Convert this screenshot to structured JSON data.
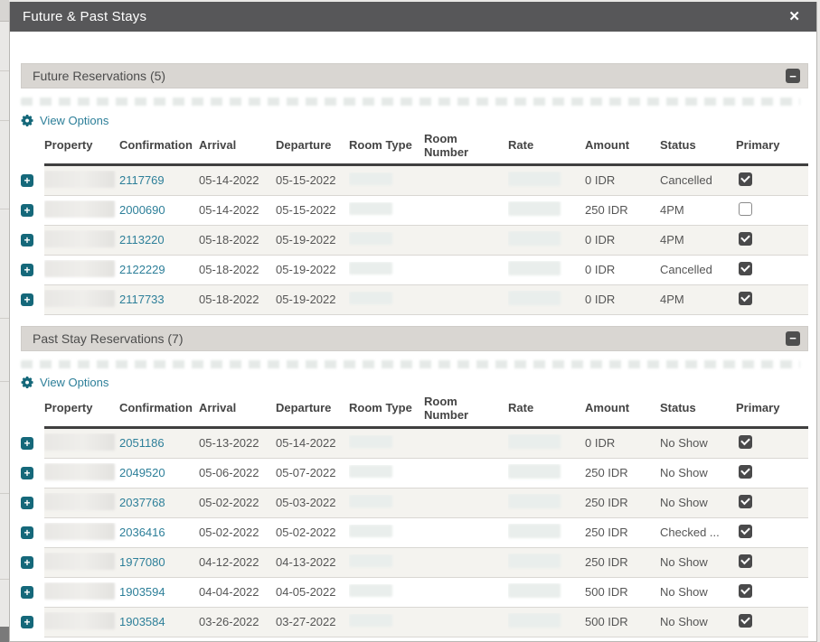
{
  "modal": {
    "title": "Future & Past Stays"
  },
  "icons": {
    "close": "✕",
    "collapse": "−",
    "expand": "+"
  },
  "view_options_label": "View Options",
  "columns": [
    "Property",
    "Confirmation",
    "Arrival",
    "Departure",
    "Room Type",
    "Room Number",
    "Rate",
    "Amount",
    "Status",
    "Primary"
  ],
  "redacted_columns": [
    "Property",
    "Room Type",
    "Room Number",
    "Rate"
  ],
  "colors": {
    "titlebar_bg": "#575759",
    "section_header_bg": "#d9d6d2",
    "teal_accent": "#15687a",
    "link_teal": "#2d7f99",
    "row_alt_bg": "#f4f3ef",
    "checkbox_checked_bg": "#4a4a4b"
  },
  "sections": [
    {
      "title": "Future Reservations (5)",
      "rows": [
        {
          "confirmation": "2117769",
          "arrival": "05-14-2022",
          "departure": "05-15-2022",
          "amount": "0 IDR",
          "status": "Cancelled",
          "primary": true
        },
        {
          "confirmation": "2000690",
          "arrival": "05-14-2022",
          "departure": "05-15-2022",
          "amount": "250 IDR",
          "status": "4PM",
          "primary": false
        },
        {
          "confirmation": "2113220",
          "arrival": "05-18-2022",
          "departure": "05-19-2022",
          "amount": "0 IDR",
          "status": "4PM",
          "primary": true
        },
        {
          "confirmation": "2122229",
          "arrival": "05-18-2022",
          "departure": "05-19-2022",
          "amount": "0 IDR",
          "status": "Cancelled",
          "primary": true
        },
        {
          "confirmation": "2117733",
          "arrival": "05-18-2022",
          "departure": "05-19-2022",
          "amount": "0 IDR",
          "status": "4PM",
          "primary": true
        }
      ]
    },
    {
      "title": "Past Stay Reservations (7)",
      "rows": [
        {
          "confirmation": "2051186",
          "arrival": "05-13-2022",
          "departure": "05-14-2022",
          "amount": "0 IDR",
          "status": "No Show",
          "primary": true
        },
        {
          "confirmation": "2049520",
          "arrival": "05-06-2022",
          "departure": "05-07-2022",
          "amount": "250 IDR",
          "status": "No Show",
          "primary": true
        },
        {
          "confirmation": "2037768",
          "arrival": "05-02-2022",
          "departure": "05-03-2022",
          "amount": "250 IDR",
          "status": "No Show",
          "primary": true
        },
        {
          "confirmation": "2036416",
          "arrival": "05-02-2022",
          "departure": "05-02-2022",
          "amount": "250 IDR",
          "status": "Checked ...",
          "primary": true
        },
        {
          "confirmation": "1977080",
          "arrival": "04-12-2022",
          "departure": "04-13-2022",
          "amount": "250 IDR",
          "status": "No Show",
          "primary": true
        },
        {
          "confirmation": "1903594",
          "arrival": "04-04-2022",
          "departure": "04-05-2022",
          "amount": "500 IDR",
          "status": "No Show",
          "primary": true
        },
        {
          "confirmation": "1903584",
          "arrival": "03-26-2022",
          "departure": "03-27-2022",
          "amount": "500 IDR",
          "status": "No Show",
          "primary": true
        }
      ]
    }
  ]
}
